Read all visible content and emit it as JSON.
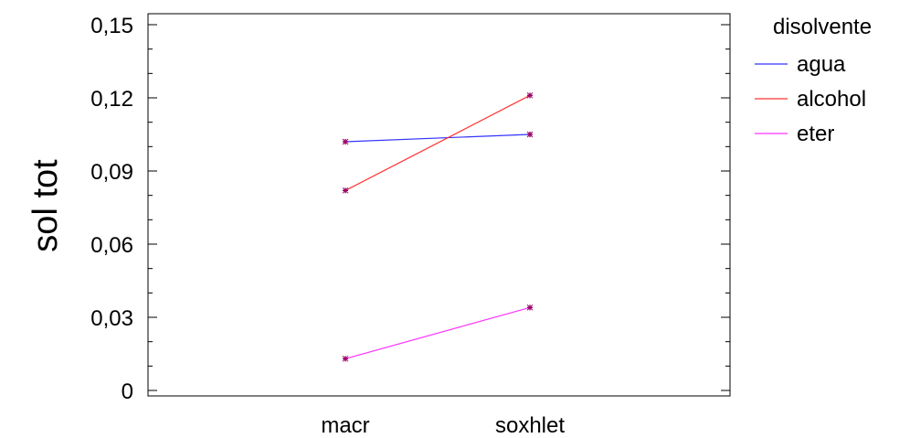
{
  "chart_data": {
    "type": "line",
    "ylabel": "sol tot",
    "xlabel": "",
    "categories": [
      "macr",
      "soxhlet"
    ],
    "ylim": [
      0,
      0.15
    ],
    "yticks": [
      "0",
      "0,03",
      "0,06",
      "0,09",
      "0,12",
      "0,15"
    ],
    "ytick_values": [
      0,
      0.03,
      0.06,
      0.09,
      0.12,
      0.15
    ],
    "legend_title": "disolvente",
    "legend_position": "right",
    "series": [
      {
        "name": "agua",
        "values": [
          0.102,
          0.105
        ],
        "color": "#3333ff"
      },
      {
        "name": "alcohol",
        "values": [
          0.082,
          0.121
        ],
        "color": "#ff3333"
      },
      {
        "name": "eter",
        "values": [
          0.013,
          0.034
        ],
        "color": "#ff33ff"
      }
    ],
    "marker_color": "#990066"
  }
}
